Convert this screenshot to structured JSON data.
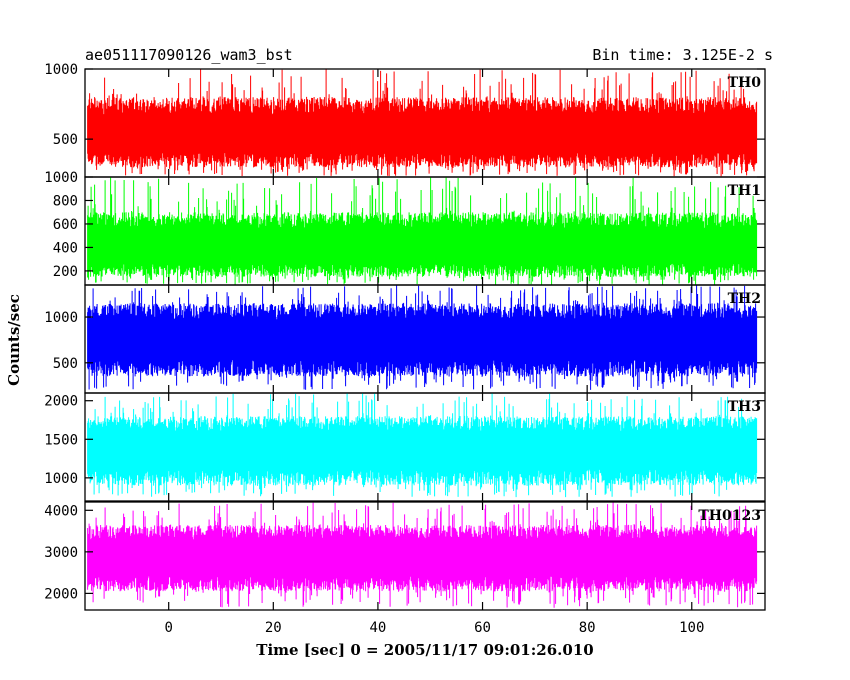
{
  "header": {
    "left_title": "ae051117090126_wam3_bst",
    "right_title": "Bin time: 3.125E-2 s"
  },
  "chart_data": {
    "type": "line",
    "title": "ae051117090126_wam3_bst",
    "subtitle": "Bin time: 3.125E-2 s",
    "xlabel": "Time [sec] 0 = 2005/11/17 09:01:26.010",
    "ylabel": "Counts/sec",
    "xlim": [
      -16,
      114
    ],
    "x_range": [
      -15.5,
      112.4
    ],
    "x_ticks": [
      0,
      20,
      40,
      60,
      80,
      100
    ],
    "x_tick_labels": [
      "0",
      "20",
      "40",
      "60",
      "80",
      "100"
    ],
    "grid": false,
    "legend": "none",
    "panels": [
      {
        "name": "TH0",
        "color": "#ff0000",
        "ylim": [
          230,
          1000
        ],
        "y_ticks": [
          500,
          1000
        ],
        "y_tick_labels": [
          "500",
          "1000"
        ],
        "mean": 525,
        "band_low": 300,
        "band_high": 800,
        "min_observed": 235,
        "max_observed": 1000
      },
      {
        "name": "TH1",
        "color": "#00ff00",
        "ylim": [
          80,
          1000
        ],
        "y_ticks": [
          200,
          400,
          600,
          800,
          1000
        ],
        "y_tick_labels": [
          "200",
          "400",
          "600",
          "800",
          "1000"
        ],
        "mean": 400,
        "band_low": 150,
        "band_high": 700,
        "min_observed": 80,
        "max_observed": 1000
      },
      {
        "name": "TH2",
        "color": "#0000ff",
        "ylim": [
          170,
          1350
        ],
        "y_ticks": [
          500,
          1000
        ],
        "y_tick_labels": [
          "500",
          "1000"
        ],
        "mean": 750,
        "band_low": 350,
        "band_high": 1150,
        "min_observed": 200,
        "max_observed": 1350
      },
      {
        "name": "TH3",
        "color": "#00ffff",
        "ylim": [
          700,
          2100
        ],
        "y_ticks": [
          1000,
          1500,
          2000
        ],
        "y_tick_labels": [
          "1000",
          "1500",
          "2000"
        ],
        "mean": 1370,
        "band_low": 900,
        "band_high": 1800,
        "min_observed": 750,
        "max_observed": 2100
      },
      {
        "name": "TH0123",
        "color": "#ff00ff",
        "ylim": [
          1600,
          4200
        ],
        "y_ticks": [
          2000,
          3000,
          4000
        ],
        "y_tick_labels": [
          "2000",
          "3000",
          "4000"
        ],
        "mean": 2850,
        "band_low": 2050,
        "band_high": 3650,
        "min_observed": 1650,
        "max_observed": 4200
      }
    ]
  }
}
